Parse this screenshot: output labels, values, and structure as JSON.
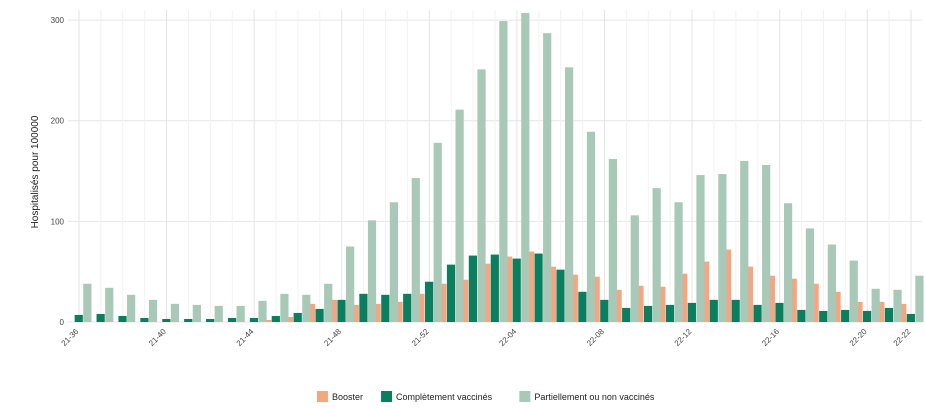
{
  "chart_data": {
    "type": "bar",
    "title": "",
    "xlabel": "",
    "ylabel": "Hospitalisés pour 100000",
    "ylim": [
      0,
      310
    ],
    "yticks": [
      0,
      100,
      200,
      300
    ],
    "grid": true,
    "legend_position": "bottom",
    "categories": [
      "21-36",
      "21-37",
      "21-38",
      "21-39",
      "21-40",
      "21-41",
      "21-42",
      "21-43",
      "21-44",
      "21-45",
      "21-46",
      "21-47",
      "21-48",
      "21-49",
      "21-50",
      "21-51",
      "21-52",
      "22-01",
      "22-02",
      "22-03",
      "22-04",
      "22-05",
      "22-06",
      "22-07",
      "22-08",
      "22-09",
      "22-10",
      "22-11",
      "22-12",
      "22-13",
      "22-14",
      "22-15",
      "22-16",
      "22-17",
      "22-18",
      "22-19",
      "22-20",
      "22-21",
      "22-22"
    ],
    "x_tick_labels": [
      "21-36",
      "21-40",
      "21-44",
      "21-48",
      "21-52",
      "22-04",
      "22-08",
      "22-12",
      "22-16",
      "22-20",
      "22-22"
    ],
    "series": [
      {
        "name": "Booster",
        "color": "#f4a582",
        "values": [
          0,
          0,
          0,
          0,
          0,
          0,
          0,
          0,
          0,
          2,
          5,
          18,
          22,
          17,
          18,
          20,
          28,
          38,
          42,
          58,
          65,
          70,
          55,
          47,
          45,
          32,
          36,
          35,
          48,
          60,
          72,
          55,
          46,
          43,
          38,
          30,
          20,
          20,
          18
        ]
      },
      {
        "name": "Complètement vaccinés",
        "color": "#0a7f5f",
        "values": [
          7,
          8,
          6,
          4,
          3,
          3,
          3,
          4,
          4,
          6,
          9,
          13,
          22,
          28,
          27,
          28,
          40,
          57,
          66,
          67,
          63,
          68,
          52,
          30,
          22,
          14,
          16,
          17,
          19,
          22,
          22,
          17,
          19,
          12,
          11,
          12,
          11,
          14,
          8
        ]
      },
      {
        "name": "Partiellement ou non vaccinés",
        "color": "#a8c9b8",
        "values": [
          38,
          34,
          27,
          22,
          18,
          17,
          16,
          16,
          21,
          28,
          27,
          38,
          75,
          101,
          119,
          143,
          178,
          211,
          251,
          299,
          307,
          287,
          253,
          189,
          162,
          106,
          133,
          119,
          146,
          147,
          160,
          156,
          118,
          93,
          77,
          61,
          33,
          32,
          46
        ]
      }
    ]
  }
}
